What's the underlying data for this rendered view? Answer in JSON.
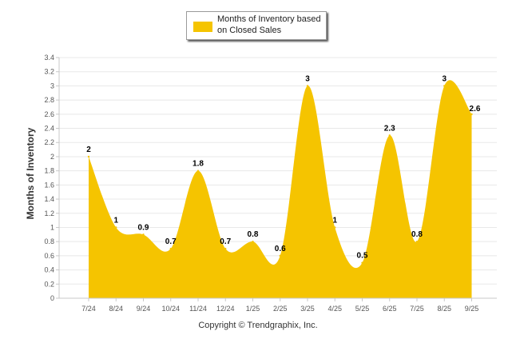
{
  "chart_data": {
    "type": "area",
    "categories": [
      "7/24",
      "8/24",
      "9/24",
      "10/24",
      "11/24",
      "12/24",
      "1/25",
      "2/25",
      "3/25",
      "4/25",
      "5/25",
      "6/25",
      "7/25",
      "8/25",
      "9/25"
    ],
    "series": [
      {
        "name": "Months of Inventory based on Closed Sales",
        "values": [
          2,
          1,
          0.9,
          0.7,
          1.8,
          0.7,
          0.8,
          0.6,
          3,
          1,
          0.5,
          2.3,
          0.8,
          3,
          2.6
        ],
        "color": "#f5c400"
      }
    ],
    "data_labels": [
      "2",
      "1",
      "0.9",
      "0.7",
      "1.8",
      "0.7",
      "0.8",
      "0.6",
      "3",
      "1",
      "0.5",
      "2.3",
      "0.8",
      "3",
      "2.6"
    ],
    "ylabel": "Months of Inventory",
    "xlabel": "",
    "ylim": [
      0,
      3.4
    ],
    "y_ticks": [
      "0",
      "0.2",
      "0.4",
      "0.6",
      "0.8",
      "1",
      "1.2",
      "1.4",
      "1.6",
      "1.8",
      "2",
      "2.2",
      "2.4",
      "2.6",
      "2.8",
      "3",
      "3.2",
      "3.4"
    ],
    "grid": true,
    "legend_position": "top-center",
    "colors": {
      "grid": "#e8e8e8",
      "axis": "#c8c8c8",
      "fill": "#f5c400"
    }
  },
  "legend": {
    "line1": "Months of Inventory based",
    "line2": "on Closed Sales"
  },
  "footer": {
    "copyright": "Copyright © Trendgraphix, Inc."
  }
}
